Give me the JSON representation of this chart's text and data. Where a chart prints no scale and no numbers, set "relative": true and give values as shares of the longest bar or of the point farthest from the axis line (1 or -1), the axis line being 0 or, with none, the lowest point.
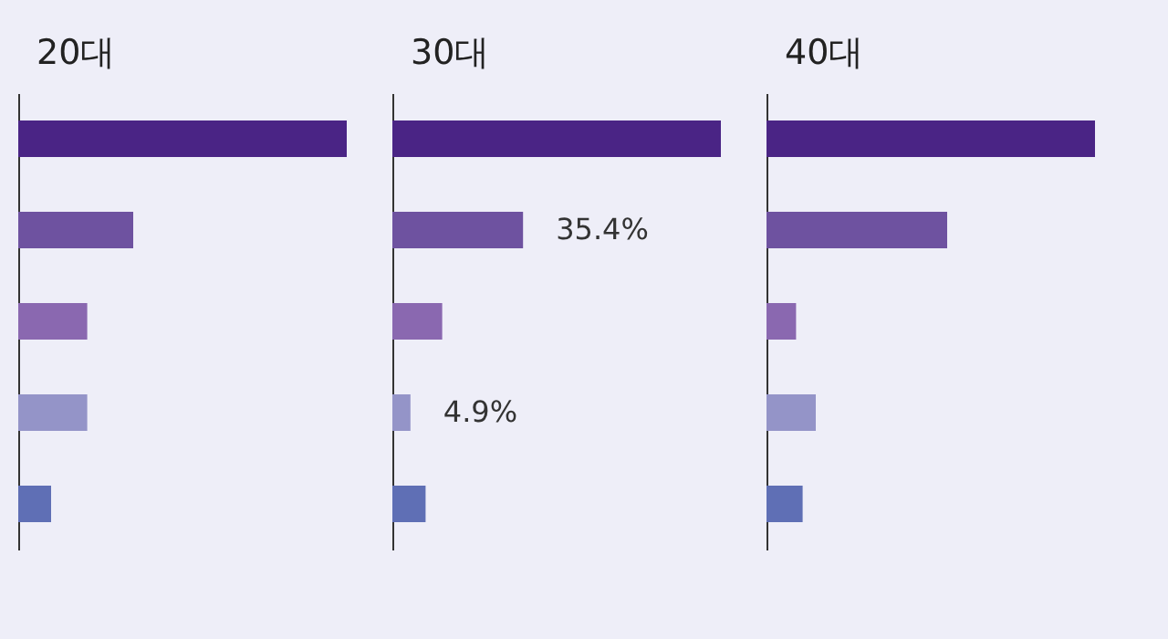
{
  "chart_data": [
    {
      "type": "bar",
      "orientation": "horizontal",
      "relative": true,
      "title": "20대",
      "tick_labels": false,
      "categories": [
        null,
        null,
        null,
        null,
        null
      ],
      "values": [
        1,
        0.35,
        0.21,
        0.21,
        0.1
      ],
      "colors": [
        "#4a2485",
        "#6e52a0",
        "#8a68b0",
        "#9494c8",
        "#5f6fb5"
      ]
    },
    {
      "type": "bar",
      "orientation": "horizontal",
      "title": "30대",
      "tick_labels": false,
      "xlim": [
        0,
        89
      ],
      "categories": [
        null,
        null,
        null,
        null,
        null
      ],
      "values": [
        89,
        35.4,
        13.5,
        4.9,
        9
      ],
      "colors": [
        "#4a2485",
        "#6e52a0",
        "#8a68b0",
        "#9494c8",
        "#5f6fb5"
      ],
      "value_labels": [
        null,
        "35.4%",
        null,
        "4.9%",
        null
      ]
    },
    {
      "type": "bar",
      "orientation": "horizontal",
      "relative": true,
      "title": "40대",
      "tick_labels": false,
      "categories": [
        null,
        null,
        null,
        null,
        null
      ],
      "values": [
        1,
        0.55,
        0.09,
        0.15,
        0.11
      ],
      "colors": [
        "#4a2485",
        "#6e52a0",
        "#8a68b0",
        "#9494c8",
        "#5f6fb5"
      ]
    }
  ]
}
